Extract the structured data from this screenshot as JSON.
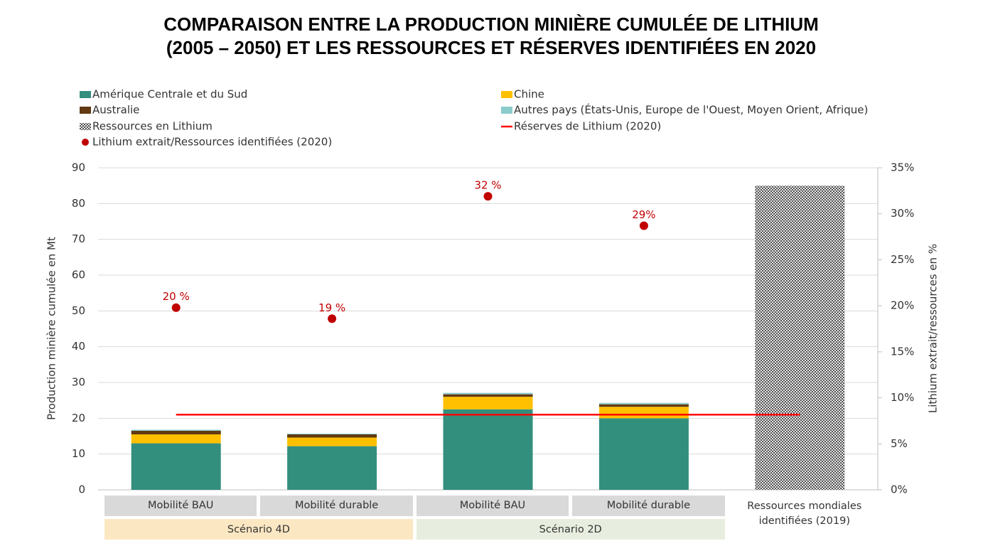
{
  "chart_data": {
    "type": "bar",
    "stacked": true,
    "title": "COMPARAISON ENTRE LA PRODUCTION MINIÈRE CUMULÉE DE LITHIUM",
    "subtitle": "(2005 – 2050) ET LES RESSOURCES ET RÉSERVES IDENTIFIÉES EN 2020",
    "y_label": "Production minière cumulée en Mt",
    "y2_label": "Lithium extrait/ressources en %",
    "categories": [
      "Mobilité BAU",
      "Mobilité durable",
      "Mobilité BAU",
      "Mobilité durable",
      "Ressources mondiales identifiées (2019)"
    ],
    "group_labels": [
      "Scénario 4D",
      "Scénario 2D"
    ],
    "ylim": [
      0,
      90
    ],
    "yticks": [
      0,
      10,
      20,
      30,
      40,
      50,
      60,
      70,
      80,
      90
    ],
    "y2lim": [
      0,
      35
    ],
    "y2ticks": [
      {
        "value": 0,
        "label": "0%"
      },
      {
        "value": 5,
        "label": "5%"
      },
      {
        "value": 10,
        "label": "10%"
      },
      {
        "value": 15,
        "label": "15%"
      },
      {
        "value": 20,
        "label": "20%"
      },
      {
        "value": 25,
        "label": "25%"
      },
      {
        "value": 30,
        "label": "30%"
      },
      {
        "value": 35,
        "label": "35%"
      }
    ],
    "grid": true,
    "series": [
      {
        "name": "Amérique Centrale et du Sud",
        "type": "bar",
        "color": "#338f7d",
        "values": [
          13,
          12.2,
          22.5,
          20,
          null
        ]
      },
      {
        "name": "Chine",
        "type": "bar",
        "color": "#ffc000",
        "values": [
          2.5,
          2.4,
          3.5,
          3.2,
          null
        ]
      },
      {
        "name": "Australie",
        "type": "bar",
        "color": "#633a12",
        "values": [
          1.0,
          0.9,
          0.7,
          0.7,
          null
        ]
      },
      {
        "name": "Autres pays (États-Unis, Europe de l'Ouest, Moyen Orient, Afrique)",
        "type": "bar",
        "color": "#8ccbcb",
        "values": [
          0.3,
          0.2,
          0.4,
          0.4,
          null
        ]
      },
      {
        "name": "Ressources en Lithium",
        "type": "bar",
        "color": "#808080",
        "pattern": "checker",
        "values": [
          null,
          null,
          null,
          null,
          85
        ]
      },
      {
        "name": "Réserves de Lithium (2020)",
        "type": "line",
        "color": "#ff0000",
        "values": [
          21,
          21,
          21,
          21,
          21
        ]
      },
      {
        "name": "Lithium extrait/Ressources identifiées (2020)",
        "type": "scatter",
        "axis": "y2",
        "color": "#c00000",
        "values": [
          19.8,
          18.6,
          31.9,
          28.7,
          null
        ],
        "value_labels": [
          "20 %",
          "19 %",
          "32 %",
          "29%",
          null
        ]
      }
    ]
  }
}
